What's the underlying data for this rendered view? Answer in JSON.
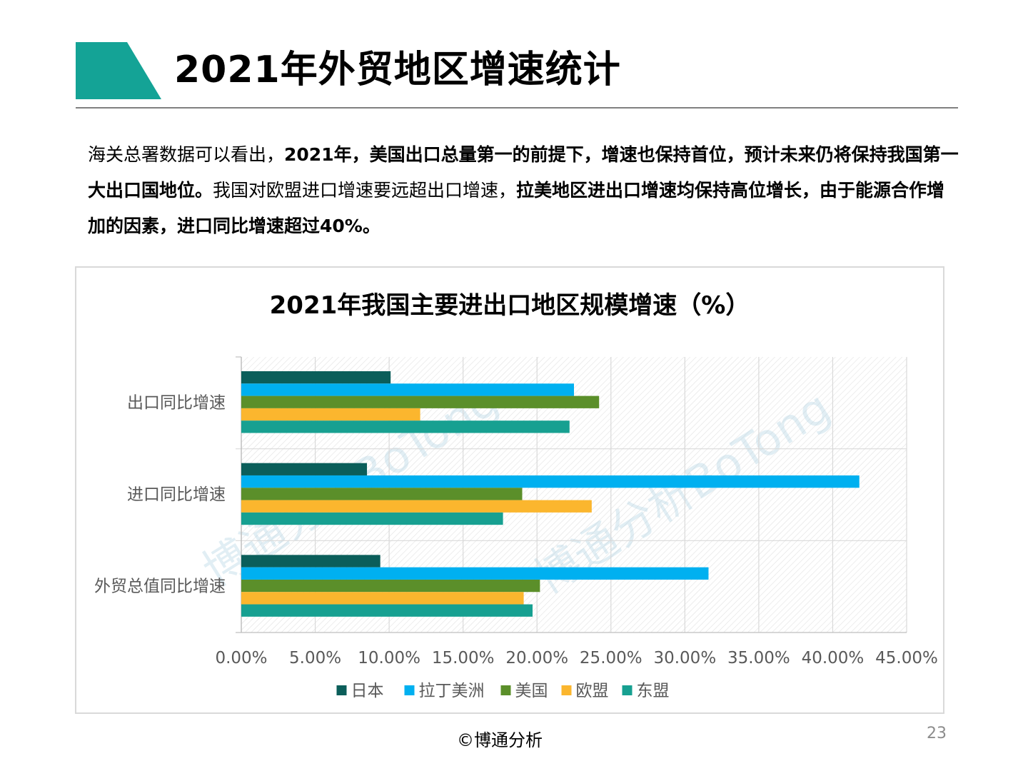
{
  "title": "2021年外贸地区增速统计",
  "intro": {
    "seg1": "海关总署数据可以看出，",
    "seg2": "2021年，美国出口总量第一的前提下，增速也保持首位，预计未来仍将保持我国第一大出口国地位。",
    "seg3": "我国对欧盟进口增速要远超出口增速，",
    "seg4": "拉美地区进出口增速均保持高位增长，由于能源合作增加的因素，进口同比增速超过40%。"
  },
  "colors": {
    "accent": "#14a396",
    "japan": "#0b5e5a",
    "latam": "#00b0f0",
    "usa": "#5b8f2a",
    "eu": "#fbb62e",
    "asean": "#17a091"
  },
  "watermark": {
    "text1": "博通分析BoTong",
    "text2": "博通分析BoTong"
  },
  "footer": {
    "copyright": "©博通分析",
    "page": "23"
  },
  "chart_data": {
    "type": "bar",
    "orientation": "horizontal",
    "title": "2021年我国主要进出口地区规模增速（%）",
    "categories": [
      "出口同比增速",
      "进口同比增速",
      "外贸总值同比增速"
    ],
    "series": [
      {
        "name": "日本",
        "color": "#0b5e5a",
        "values": [
          10.1,
          8.5,
          9.4
        ]
      },
      {
        "name": "拉丁美洲",
        "color": "#00b0f0",
        "values": [
          22.5,
          41.8,
          31.6
        ]
      },
      {
        "name": "美国",
        "color": "#5b8f2a",
        "values": [
          24.2,
          19.0,
          20.2
        ]
      },
      {
        "name": "欧盟",
        "color": "#fbb62e",
        "values": [
          12.1,
          23.7,
          19.1
        ]
      },
      {
        "name": "东盟",
        "color": "#17a091",
        "values": [
          22.2,
          17.7,
          19.7
        ]
      }
    ],
    "xlim": [
      0,
      45
    ],
    "xticks": [
      "0.00%",
      "5.00%",
      "10.00%",
      "15.00%",
      "20.00%",
      "25.00%",
      "30.00%",
      "35.00%",
      "40.00%",
      "45.00%"
    ],
    "xtick_values": [
      0,
      5,
      10,
      15,
      20,
      25,
      30,
      35,
      40,
      45
    ],
    "legend_position": "bottom",
    "grid": true
  }
}
